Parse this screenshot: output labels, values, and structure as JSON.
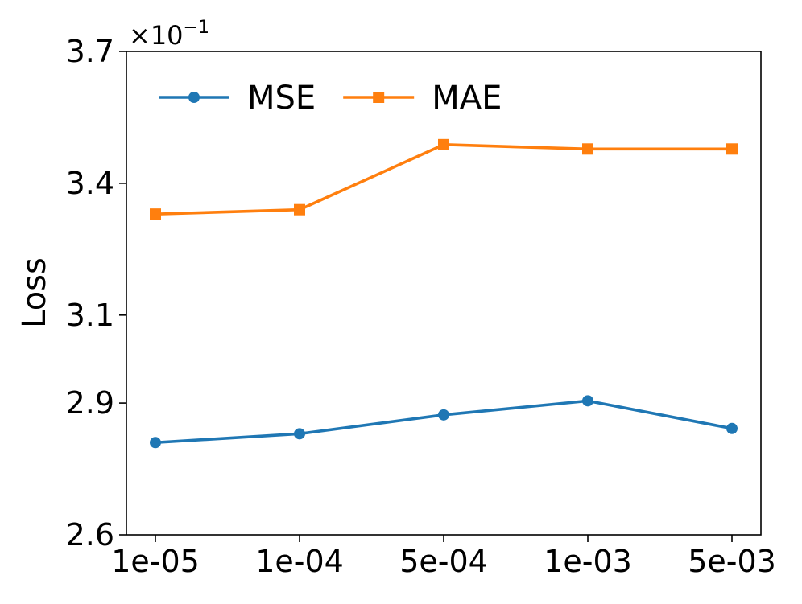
{
  "chart_data": {
    "type": "line",
    "title": "",
    "xlabel": "",
    "ylabel": "Loss",
    "y_scale_multiplier_label": "×10",
    "y_scale_multiplier_exponent": "−1",
    "categories": [
      "1e-05",
      "1e-04",
      "5e-04",
      "1e-03",
      "5e-03"
    ],
    "ylim": [
      2.6,
      3.7
    ],
    "yticks": [
      2.6,
      2.9,
      3.1,
      3.4,
      3.7
    ],
    "ytick_labels": [
      "2.6",
      "2.9",
      "3.1",
      "3.4",
      "3.7"
    ],
    "grid": false,
    "legend_position": "top-left",
    "series": [
      {
        "name": "MSE",
        "color": "#1f77b4",
        "marker": "circle",
        "values": [
          2.81,
          2.83,
          2.873,
          2.905,
          2.842
        ]
      },
      {
        "name": "MAE",
        "color": "#ff7f0e",
        "marker": "square",
        "values": [
          3.33,
          3.34,
          3.488,
          3.478,
          3.478
        ]
      }
    ]
  }
}
